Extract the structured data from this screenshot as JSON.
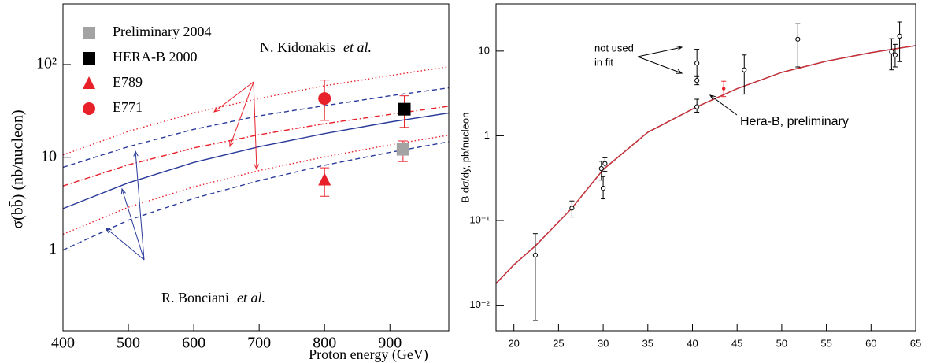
{
  "chart_data": [
    {
      "type": "line",
      "y_label": "σ(bb̄) (nb/nucleon)",
      "x_label": "Proton energy (GeV)",
      "xlim": [
        400,
        990
      ],
      "xticks": [
        400,
        500,
        600,
        700,
        800,
        900
      ],
      "ylim": [
        0.135,
        450
      ],
      "yticks": [
        1,
        10,
        {
          "value": 100,
          "label": "10²"
        }
      ],
      "log_y": true,
      "legend": "top-left",
      "series": [
        {
          "type": "scatter",
          "name": "Preliminary 2004",
          "color": "#a3a3a3",
          "marker": "square",
          "error_color": "#e8202a",
          "x": [
            920
          ],
          "values": [
            12.2
          ],
          "low": [
            9
          ],
          "high": [
            15
          ]
        },
        {
          "type": "scatter",
          "name": "HERA-B 2000",
          "color": "#000000",
          "marker": "square",
          "error_color": "#e8202a",
          "x": [
            922
          ],
          "values": [
            33
          ],
          "low": [
            21
          ],
          "high": [
            46
          ]
        },
        {
          "type": "scatter",
          "name": "E789",
          "color": "#e8202a",
          "marker": "triangle",
          "error_color": "#e8202a",
          "x": [
            800
          ],
          "values": [
            5.7
          ],
          "low": [
            3.8
          ],
          "high": [
            7.7
          ]
        },
        {
          "type": "scatter",
          "name": "E771",
          "color": "#e8202a",
          "marker": "circle",
          "error_color": "#e8202a",
          "x": [
            800
          ],
          "values": [
            43
          ],
          "low": [
            25
          ],
          "high": [
            68
          ]
        },
        {
          "type": "line",
          "color": "#e8202a",
          "dash": "dotted",
          "x": [
            400,
            500,
            600,
            700,
            800,
            900,
            990
          ],
          "values": [
            10.6,
            19,
            30,
            43,
            59,
            76,
            95
          ]
        },
        {
          "type": "line",
          "color": "#2a3a9a",
          "dash": "dashed",
          "x": [
            400,
            500,
            600,
            700,
            800,
            900,
            990
          ],
          "values": [
            7.8,
            13,
            20,
            28,
            36,
            46,
            56
          ]
        },
        {
          "type": "line",
          "color": "#e8202a",
          "dash": "dashdot",
          "x": [
            400,
            500,
            600,
            700,
            800,
            900,
            990
          ],
          "values": [
            4.9,
            8.3,
            12.6,
            17.5,
            23,
            29,
            35.5
          ]
        },
        {
          "type": "line",
          "color": "#2a3a9a",
          "dash": "solid",
          "x": [
            400,
            500,
            600,
            700,
            800,
            900,
            990
          ],
          "values": [
            2.8,
            5.3,
            8.8,
            13,
            18,
            24,
            30
          ]
        },
        {
          "type": "line",
          "color": "#e8202a",
          "dash": "dotted",
          "x": [
            400,
            500,
            600,
            700,
            800,
            900,
            990
          ],
          "values": [
            1.48,
            2.9,
            4.8,
            7.2,
            10.1,
            13.6,
            17.3
          ]
        },
        {
          "type": "line",
          "color": "#2a3a9a",
          "dash": "dashed",
          "x": [
            400,
            500,
            600,
            700,
            800,
            900,
            990
          ],
          "values": [
            1.0,
            2.1,
            3.6,
            5.6,
            8.2,
            11.3,
            14.7
          ]
        }
      ],
      "annotations": [
        {
          "text": "N. Kidonakis",
          "emphasis": "et al.",
          "color": "#000000"
        },
        {
          "text": "R. Bonciani",
          "emphasis": "et al.",
          "color": "#000000"
        }
      ]
    },
    {
      "type": "line",
      "y_label": "B dσ/dy, pb/nucleon",
      "xlim": [
        18,
        65
      ],
      "xticks": [
        20,
        25,
        30,
        35,
        40,
        45,
        50,
        55,
        60,
        65
      ],
      "ylim": [
        0.005,
        36
      ],
      "yticks": [
        {
          "value": 0.01,
          "label": "10⁻²"
        },
        {
          "value": 0.1,
          "label": "10⁻¹"
        },
        1,
        10
      ],
      "log_y": true,
      "series": [
        {
          "type": "line",
          "color": "#2a3a9a",
          "dash": "solid",
          "x": [
            18,
            20,
            22.4,
            26.5,
            30,
            35,
            40.5,
            45,
            50,
            55,
            60,
            65
          ],
          "values": [
            0.018,
            0.03,
            0.05,
            0.14,
            0.4,
            1.1,
            2.2,
            3.6,
            5.6,
            7.6,
            9.6,
            11.6
          ]
        },
        {
          "type": "line",
          "color": "#d03030",
          "dash": "solid",
          "x": [
            18,
            20,
            22.4,
            26.5,
            30,
            35,
            40.5,
            45,
            50,
            55,
            60,
            65
          ],
          "values": [
            0.018,
            0.03,
            0.05,
            0.14,
            0.4,
            1.1,
            2.2,
            3.6,
            5.6,
            7.6,
            9.6,
            11.6
          ]
        },
        {
          "type": "scatter",
          "color": "#000000",
          "marker": "open-circle",
          "error_color": "#000000",
          "x": [
            22.4,
            26.5,
            29.8,
            30.0,
            30.2,
            40.5,
            40.5,
            40.5,
            45.8,
            51.8,
            62.3,
            62.7,
            63.2
          ],
          "values": [
            0.039,
            0.14,
            0.41,
            0.24,
            0.47,
            2.2,
            7.2,
            4.5,
            6,
            13.8,
            9.8,
            9,
            15
          ],
          "low": [
            0.0066,
            0.11,
            0.3,
            0.18,
            0.38,
            1.9,
            5.1,
            4.0,
            3.1,
            6.5,
            6,
            6.5,
            7.5
          ],
          "high": [
            0.07,
            0.17,
            0.5,
            0.33,
            0.55,
            2.7,
            10.5,
            5.0,
            9,
            21,
            14,
            12,
            22
          ]
        },
        {
          "type": "scatter",
          "color": "#e8202a",
          "marker": "dot",
          "error_color": "#e8202a",
          "x": [
            43.5
          ],
          "values": [
            3.6
          ],
          "low": [
            2.9
          ],
          "high": [
            4.4
          ]
        }
      ],
      "annotations": [
        {
          "text": "not used",
          "color": "#000000"
        },
        {
          "text": "in fit",
          "color": "#000000"
        },
        {
          "text": "Hera-B, preliminary",
          "color": "#e8202a"
        }
      ]
    }
  ]
}
